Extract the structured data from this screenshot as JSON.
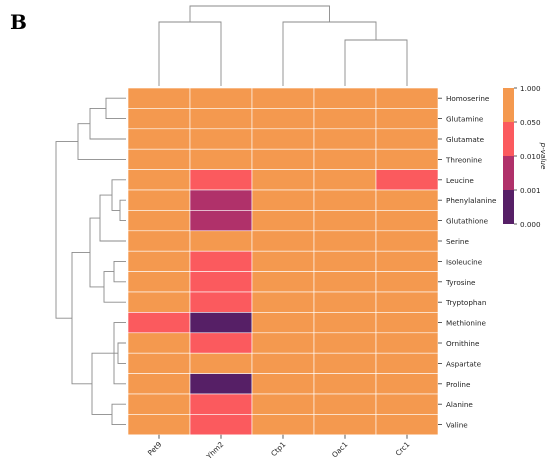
{
  "panel_label": "B",
  "chart_data": {
    "type": "heatmap",
    "rows": [
      "Homoserine",
      "Glutamine",
      "Glutamate",
      "Threonine",
      "Leucine",
      "Phenylalanine",
      "Glutathione",
      "Serine",
      "Isoleucine",
      "Tyrosine",
      "Tryptophan",
      "Methionine",
      "Ornithine",
      "Aspartate",
      "Proline",
      "Alanine",
      "Valine"
    ],
    "columns": [
      "Pet9",
      "Yhm2",
      "Ctp1",
      "Oac1",
      "Crc1"
    ],
    "values": [
      [
        1,
        1,
        1,
        1,
        1
      ],
      [
        1,
        1,
        1,
        1,
        1
      ],
      [
        1,
        1,
        1,
        1,
        1
      ],
      [
        1,
        1,
        1,
        1,
        1
      ],
      [
        1,
        2,
        1,
        1,
        2
      ],
      [
        1,
        3,
        1,
        1,
        1
      ],
      [
        1,
        3,
        1,
        1,
        1
      ],
      [
        1,
        1,
        1,
        1,
        1
      ],
      [
        1,
        2,
        1,
        1,
        1
      ],
      [
        1,
        2,
        1,
        1,
        1
      ],
      [
        1,
        2,
        1,
        1,
        1
      ],
      [
        2,
        4,
        1,
        1,
        1
      ],
      [
        1,
        2,
        1,
        1,
        1
      ],
      [
        1,
        1,
        1,
        1,
        1
      ],
      [
        1,
        4,
        1,
        1,
        1
      ],
      [
        1,
        2,
        1,
        1,
        1
      ],
      [
        1,
        2,
        1,
        1,
        1
      ]
    ],
    "value_meaning": "p-value bin index: 1 = 0.050–1.000, 2 = 0.010–0.050, 3 = 0.001–0.010, 4 = 0.000–0.001",
    "colorbar": {
      "title": "p-value",
      "ticks": [
        "1.000",
        "0.050",
        "0.010",
        "0.001",
        "0.000"
      ],
      "colors": [
        "#f4994f",
        "#fb5a5e",
        "#b0316a",
        "#561f66"
      ]
    },
    "dendrogram_rows": true,
    "dendrogram_columns": true
  }
}
